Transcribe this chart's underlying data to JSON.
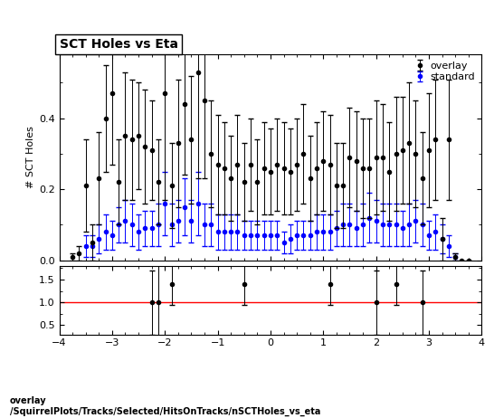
{
  "title": "SCT Holes vs Eta",
  "ylabel_main": "# SCT Holes",
  "xlabel": "",
  "xlim": [
    -4,
    4
  ],
  "ylim_main": [
    0,
    0.58
  ],
  "ylim_ratio": [
    0.3,
    1.8
  ],
  "yticks_main": [
    0,
    0.2,
    0.4
  ],
  "yticks_ratio": [
    0.5,
    1.0,
    1.5
  ],
  "xticks": [
    -4,
    -3,
    -2,
    -1,
    0,
    1,
    2,
    3,
    4
  ],
  "footer_text": "overlay\n/SquirrelPlots/Tracks/Selected/HitsOnTracks/nSCTHoles_vs_eta",
  "overlay_color": "#000000",
  "standard_color": "#0000ff",
  "ratio_line_color": "#ff0000",
  "overlay_x": [
    -3.75,
    -3.625,
    -3.5,
    -3.375,
    -3.25,
    -3.125,
    -3.0,
    -2.875,
    -2.75,
    -2.625,
    -2.5,
    -2.375,
    -2.25,
    -2.125,
    -2.0,
    -1.875,
    -1.75,
    -1.625,
    -1.5,
    -1.375,
    -1.25,
    -1.125,
    -1.0,
    -0.875,
    -0.75,
    -0.625,
    -0.5,
    -0.375,
    -0.25,
    -0.125,
    0.0,
    0.125,
    0.25,
    0.375,
    0.5,
    0.625,
    0.75,
    0.875,
    1.0,
    1.125,
    1.25,
    1.375,
    1.5,
    1.625,
    1.75,
    1.875,
    2.0,
    2.125,
    2.25,
    2.375,
    2.5,
    2.625,
    2.75,
    2.875,
    3.0,
    3.125,
    3.25,
    3.375,
    3.5,
    3.625,
    3.75
  ],
  "overlay_y": [
    0.01,
    0.02,
    0.21,
    0.05,
    0.23,
    0.4,
    0.47,
    0.22,
    0.35,
    0.34,
    0.35,
    0.32,
    0.31,
    0.22,
    0.47,
    0.21,
    0.33,
    0.44,
    0.34,
    0.53,
    0.45,
    0.3,
    0.27,
    0.26,
    0.23,
    0.27,
    0.22,
    0.27,
    0.22,
    0.26,
    0.25,
    0.27,
    0.26,
    0.25,
    0.27,
    0.3,
    0.23,
    0.26,
    0.28,
    0.27,
    0.21,
    0.21,
    0.29,
    0.28,
    0.26,
    0.26,
    0.29,
    0.29,
    0.25,
    0.3,
    0.31,
    0.33,
    0.3,
    0.23,
    0.31,
    0.34,
    0.06,
    0.34,
    0.01,
    0.0,
    0.0
  ],
  "overlay_yerr": [
    0.01,
    0.02,
    0.13,
    0.05,
    0.13,
    0.15,
    0.2,
    0.12,
    0.18,
    0.17,
    0.15,
    0.16,
    0.14,
    0.12,
    0.3,
    0.12,
    0.18,
    0.2,
    0.18,
    0.3,
    0.22,
    0.15,
    0.14,
    0.13,
    0.12,
    0.14,
    0.11,
    0.13,
    0.12,
    0.13,
    0.12,
    0.13,
    0.13,
    0.12,
    0.13,
    0.14,
    0.12,
    0.13,
    0.14,
    0.14,
    0.12,
    0.12,
    0.14,
    0.14,
    0.14,
    0.14,
    0.16,
    0.15,
    0.14,
    0.16,
    0.15,
    0.17,
    0.15,
    0.13,
    0.16,
    0.17,
    0.06,
    0.17,
    0.01,
    0.0,
    0.0
  ],
  "standard_x": [
    -3.5,
    -3.375,
    -3.25,
    -3.125,
    -3.0,
    -2.875,
    -2.75,
    -2.625,
    -2.5,
    -2.375,
    -2.25,
    -2.125,
    -2.0,
    -1.875,
    -1.75,
    -1.625,
    -1.5,
    -1.375,
    -1.25,
    -1.125,
    -1.0,
    -0.875,
    -0.75,
    -0.625,
    -0.5,
    -0.375,
    -0.25,
    -0.125,
    0.0,
    0.125,
    0.25,
    0.375,
    0.5,
    0.625,
    0.75,
    0.875,
    1.0,
    1.125,
    1.25,
    1.375,
    1.5,
    1.625,
    1.75,
    1.875,
    2.0,
    2.125,
    2.25,
    2.375,
    2.5,
    2.625,
    2.75,
    2.875,
    3.0,
    3.125,
    3.25,
    3.375,
    3.5
  ],
  "standard_y": [
    0.04,
    0.04,
    0.06,
    0.08,
    0.07,
    0.1,
    0.11,
    0.1,
    0.08,
    0.09,
    0.09,
    0.1,
    0.16,
    0.1,
    0.11,
    0.15,
    0.11,
    0.16,
    0.1,
    0.1,
    0.08,
    0.08,
    0.08,
    0.08,
    0.07,
    0.07,
    0.07,
    0.07,
    0.07,
    0.07,
    0.05,
    0.06,
    0.07,
    0.07,
    0.07,
    0.08,
    0.08,
    0.08,
    0.09,
    0.1,
    0.1,
    0.09,
    0.1,
    0.12,
    0.11,
    0.1,
    0.1,
    0.1,
    0.09,
    0.1,
    0.11,
    0.1,
    0.07,
    0.08,
    0.06,
    0.04,
    0.01
  ],
  "standard_yerr": [
    0.03,
    0.03,
    0.04,
    0.05,
    0.04,
    0.05,
    0.06,
    0.06,
    0.05,
    0.05,
    0.05,
    0.06,
    0.09,
    0.06,
    0.06,
    0.08,
    0.06,
    0.09,
    0.06,
    0.06,
    0.05,
    0.05,
    0.05,
    0.05,
    0.04,
    0.04,
    0.04,
    0.04,
    0.04,
    0.04,
    0.03,
    0.04,
    0.04,
    0.04,
    0.04,
    0.05,
    0.05,
    0.05,
    0.05,
    0.06,
    0.06,
    0.05,
    0.06,
    0.07,
    0.06,
    0.06,
    0.06,
    0.06,
    0.05,
    0.06,
    0.06,
    0.06,
    0.04,
    0.05,
    0.04,
    0.03,
    0.01
  ],
  "ratio_x": [
    -2.25,
    -2.125,
    -1.875,
    -0.5,
    1.125,
    2.0,
    2.375,
    2.875
  ],
  "ratio_y": [
    1.0,
    1.0,
    1.4,
    1.4,
    1.4,
    1.0,
    1.4,
    1.0
  ],
  "ratio_yerr": [
    0.7,
    1.0,
    0.45,
    0.45,
    0.45,
    0.7,
    0.45,
    0.7
  ],
  "marker_size": 3,
  "line_width": 0.8,
  "cap_size": 2,
  "elinewidth": 0.7
}
